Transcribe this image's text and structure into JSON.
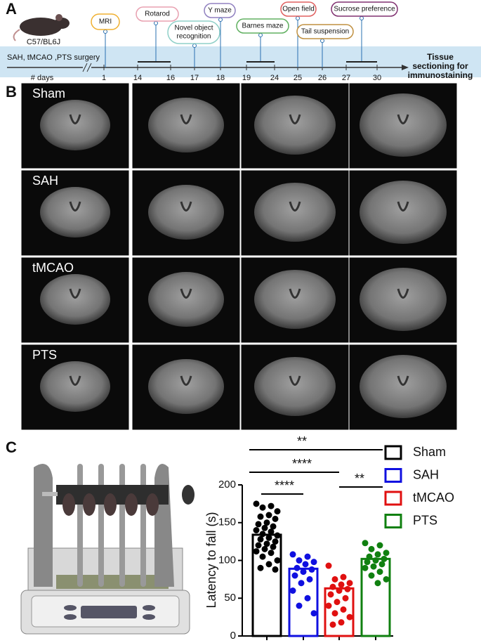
{
  "panel_a": {
    "label": "A",
    "strain": "C57/BL6J",
    "surgery": "SAH, tMCAO ,PTS surgery",
    "days_label": "# days",
    "days": [
      1,
      14,
      16,
      17,
      18,
      19,
      24,
      25,
      26,
      27,
      30
    ],
    "events": [
      [
        "MRI"
      ],
      [
        "Rotarod"
      ],
      [
        "Novel object",
        "recognition"
      ],
      [
        "Y maze"
      ],
      [
        "Barnes maze"
      ],
      [
        "Open field"
      ],
      [
        "Tail suspension"
      ],
      [
        "Sucrose preference"
      ]
    ],
    "end_label": [
      "Tissue",
      "sectioning for",
      "immunostaining"
    ]
  },
  "panel_b": {
    "label": "B",
    "rows": [
      "Sham",
      "SAH",
      "tMCAO",
      "PTS"
    ]
  },
  "panel_c": {
    "label": "C"
  },
  "chart_data": {
    "type": "bar",
    "ylabel": "Latency to fall (s)",
    "categories": [
      "Sham",
      "SAH",
      "tMCAO",
      "PTS"
    ],
    "values": [
      134,
      89,
      63,
      102
    ],
    "colors": [
      "#000000",
      "#1010e0",
      "#e01010",
      "#108010"
    ],
    "points": [
      [
        175,
        172,
        170,
        165,
        160,
        158,
        155,
        150,
        148,
        145,
        143,
        140,
        138,
        135,
        133,
        130,
        128,
        125,
        122,
        120,
        118,
        115,
        112,
        110,
        105,
        100,
        95,
        90,
        88
      ],
      [
        108,
        105,
        100,
        98,
        95,
        90,
        88,
        85,
        80,
        75,
        70,
        60,
        50,
        40,
        30
      ],
      [
        93,
        78,
        75,
        70,
        68,
        65,
        62,
        60,
        55,
        50,
        45,
        40,
        35,
        30,
        25,
        18,
        15
      ],
      [
        123,
        120,
        115,
        110,
        108,
        105,
        102,
        100,
        98,
        95,
        92,
        90,
        85,
        80,
        75,
        70
      ]
    ],
    "ylim": [
      0,
      200
    ],
    "yticks": [
      0,
      50,
      100,
      150,
      200
    ],
    "significance": [
      "**",
      "****",
      "****",
      "**"
    ]
  }
}
